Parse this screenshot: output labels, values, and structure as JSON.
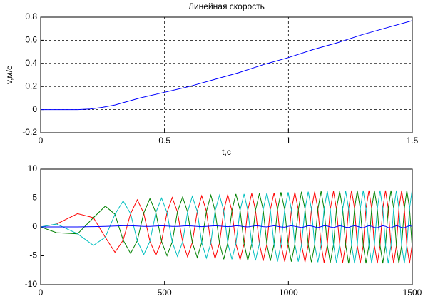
{
  "chart_data": [
    {
      "type": "line",
      "title": "Линейная скорость",
      "xlabel": "t,c",
      "ylabel": "v,м/с",
      "x": [
        0,
        0.1,
        0.15,
        0.2,
        0.25,
        0.3,
        0.35,
        0.4,
        0.5,
        0.6,
        0.7,
        0.8,
        0.9,
        1.0,
        1.1,
        1.2,
        1.3,
        1.4,
        1.5
      ],
      "series": [
        {
          "color": "#0000ff",
          "values": [
            0,
            0,
            0,
            0.005,
            0.02,
            0.04,
            0.07,
            0.1,
            0.15,
            0.2,
            0.26,
            0.32,
            0.39,
            0.45,
            0.52,
            0.58,
            0.65,
            0.71,
            0.77
          ]
        }
      ],
      "xlim": [
        0,
        1.5
      ],
      "xticks": [
        0,
        0.5,
        1,
        1.5
      ],
      "ylim": [
        -0.2,
        0.8
      ],
      "yticks": [
        -0.2,
        0,
        0.2,
        0.4,
        0.6,
        0.8
      ],
      "grid": true
    },
    {
      "type": "line",
      "x": [
        0,
        64,
        149,
        213,
        261,
        300,
        333,
        363,
        390,
        416,
        441,
        465,
        488,
        510,
        531,
        552,
        573,
        593,
        612,
        632,
        650,
        669,
        687,
        704,
        722,
        739,
        755,
        772,
        788,
        805,
        821,
        836,
        852,
        867,
        883,
        898,
        913,
        927,
        942,
        956,
        970,
        985,
        999,
        1012,
        1026,
        1040,
        1053,
        1067,
        1080,
        1093,
        1106,
        1119,
        1132,
        1144,
        1157,
        1169,
        1182,
        1194,
        1207,
        1219,
        1231,
        1243,
        1255,
        1267,
        1278,
        1290,
        1302,
        1313,
        1325,
        1336,
        1347,
        1359,
        1370,
        1381,
        1392,
        1403,
        1414,
        1425,
        1436,
        1446,
        1457,
        1468,
        1478,
        1489,
        1499
      ],
      "series": [
        {
          "color": "#ff0000",
          "values": [
            0,
            0.5,
            2.3,
            1.6,
            -1.8,
            -4.4,
            -2.3,
            2.3,
            4.7,
            2.4,
            -2.5,
            -4.9,
            -2.5,
            2.5,
            5.1,
            2.6,
            -2.6,
            -5.2,
            -2.7,
            2.7,
            5.4,
            2.7,
            -2.8,
            -5.5,
            -2.8,
            2.8,
            5.6,
            2.8,
            -2.9,
            -5.7,
            -2.9,
            2.9,
            5.8,
            2.9,
            -2.9,
            -5.9,
            -3,
            3,
            5.9,
            3,
            -3,
            -6,
            -3,
            3,
            6,
            3,
            -3.1,
            -6.1,
            -3.1,
            3.1,
            6.1,
            3.1,
            -3.1,
            -6.2,
            -3.1,
            3.1,
            6.2,
            3.1,
            -3.1,
            -6.2,
            -3.1,
            3.2,
            6.3,
            3.2,
            -3.2,
            -6.3,
            -3.2,
            3.2,
            6.3,
            3.2,
            -3.2,
            -6.3,
            -3.2,
            3.2,
            6.3,
            3.2,
            -3.2,
            -6.3,
            -3.2,
            3.2,
            6.3,
            3.2,
            -3.2,
            -6.3,
            -3.2
          ]
        },
        {
          "color": "#008000",
          "values": [
            0,
            -1,
            -1.2,
            1.6,
            3.6,
            2.2,
            -2.3,
            -4.6,
            -2.4,
            2.4,
            4.9,
            2.5,
            -2.5,
            -5,
            -2.6,
            2.6,
            5.2,
            2.6,
            -2.7,
            -5.3,
            -2.7,
            2.7,
            5.5,
            2.8,
            -2.8,
            -5.6,
            -2.8,
            2.8,
            5.7,
            2.9,
            -2.9,
            -5.8,
            -2.9,
            2.9,
            5.8,
            3,
            -3,
            -5.9,
            -3,
            3,
            6,
            3,
            -3,
            -6,
            -3,
            3,
            6.1,
            3.1,
            -3.1,
            -6.1,
            -3.1,
            3.1,
            6.2,
            3.1,
            -3.1,
            -6.2,
            -3.1,
            3.1,
            6.2,
            3.1,
            -3.1,
            -6.3,
            -3.2,
            3.2,
            6.3,
            3.2,
            -3.2,
            -6.3,
            -3.2,
            3.2,
            6.3,
            3.2,
            -3.2,
            -6.3,
            -3.2,
            3.2,
            6.3,
            3.2,
            -3.2,
            -6.3,
            -3.2,
            3.2,
            6.3,
            3.2,
            -3.2
          ]
        },
        {
          "color": "#00bfbf",
          "values": [
            0,
            0.5,
            -1.2,
            -3.2,
            -1.8,
            2.2,
            4.5,
            2.3,
            -2.4,
            -4.8,
            -2.5,
            2.5,
            5,
            2.5,
            -2.6,
            -5.1,
            -2.6,
            2.6,
            5.3,
            2.7,
            -2.7,
            -5.4,
            -2.8,
            2.8,
            5.5,
            2.8,
            -2.8,
            -5.6,
            -2.9,
            2.9,
            5.7,
            2.9,
            -2.9,
            -5.8,
            -2.9,
            3,
            5.9,
            3,
            -3,
            -6,
            -3,
            3,
            6,
            3,
            -3,
            -6,
            -3.1,
            3.1,
            6.1,
            3.1,
            -3.1,
            -6.1,
            -3.1,
            3.1,
            6.2,
            3.1,
            -3.1,
            -6.2,
            -3.1,
            3.1,
            6.2,
            3.2,
            -3.2,
            -6.3,
            -3.2,
            3.2,
            6.3,
            3.2,
            -3.2,
            -6.3,
            -3.2,
            3.2,
            6.3,
            3.2,
            -3.2,
            -6.3,
            -3.2,
            3.2,
            6.3,
            3.2,
            -3.2,
            -6.3,
            -3.2,
            3.2,
            6.3
          ]
        },
        {
          "color": "#0000ff",
          "values": [
            0,
            0,
            0,
            0.05,
            0.1,
            0.15,
            0.2,
            0.2,
            0.15,
            0.1,
            0.1,
            0.15,
            0.2,
            0.15,
            0.1,
            0.1,
            0.15,
            0.2,
            0.15,
            0.1,
            0.05,
            0.1,
            0.15,
            0.2,
            0.15,
            0.1,
            0.05,
            0.1,
            0.2,
            0.15,
            0.05,
            0,
            0.1,
            0.2,
            0.15,
            0.05,
            0,
            0.1,
            0.2,
            0.1,
            0,
            -0.05,
            0.1,
            0.2,
            0.1,
            0,
            -0.1,
            0.05,
            0.2,
            0.15,
            0,
            -0.1,
            0.05,
            0.2,
            0.15,
            0,
            -0.1,
            0.05,
            0.2,
            0.1,
            -0.05,
            -0.1,
            0.1,
            0.2,
            0.1,
            -0.05,
            -0.15,
            0.05,
            0.2,
            0.1,
            -0.1,
            -0.15,
            0.05,
            0.2,
            0.1,
            -0.1,
            -0.15,
            0.05,
            0.2,
            0.1,
            -0.1,
            -0.15,
            0.05,
            0.2,
            0.1
          ]
        }
      ],
      "xlim": [
        0,
        1500
      ],
      "xticks": [
        0,
        500,
        1000,
        1500
      ],
      "ylim": [
        -10,
        10
      ],
      "yticks": [
        -10,
        -5,
        0,
        5,
        10
      ],
      "grid": false
    }
  ]
}
